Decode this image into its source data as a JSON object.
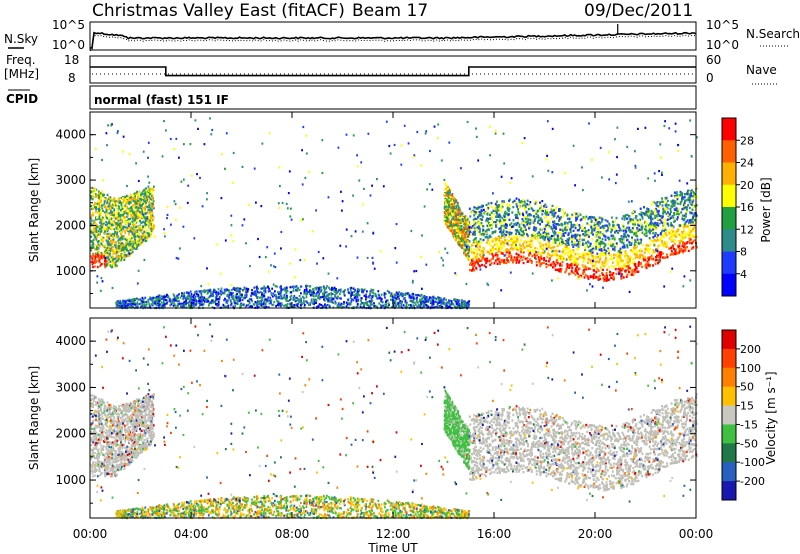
{
  "header": {
    "title": "Christmas Valley East (fitACF)",
    "beam": "Beam 17",
    "date": "09/Dec/2011"
  },
  "ancillary": {
    "nsky_label": "N.Sky",
    "nsearch_label": "N.Search",
    "freq_label": "Freq.",
    "freq_unit": "[MHz]",
    "nave_label": "Nave",
    "cpid_label": "CPID",
    "cpid_text": "normal (fast) 151 IF",
    "noise_ticks": [
      "10^5",
      "10^0"
    ],
    "freq_ticks": [
      "18",
      "8"
    ],
    "nave_ticks": [
      "60",
      "0"
    ]
  },
  "chart_data": [
    {
      "type": "heatmap",
      "name": "power-panel",
      "ylabel": "Slant Range [km]",
      "ylim": [
        180,
        4500
      ],
      "yticks": [
        "1000",
        "2000",
        "3000",
        "4000"
      ],
      "colorbar_label": "Power [dB]",
      "colorbar_ticks": [
        "28",
        "24",
        "20",
        "16",
        "12",
        "8",
        "4"
      ],
      "colorbar_range": [
        0,
        32
      ],
      "colors": [
        "#0000ff",
        "#1e3cff",
        "#2e8b8b",
        "#20a040",
        "#ffff00",
        "#ffb000",
        "#ff6000",
        "#ff0000"
      ]
    },
    {
      "type": "heatmap",
      "name": "velocity-panel",
      "ylabel": "Velocity [m s^-1]",
      "ylabel_axis": "Slant Range [km]",
      "ylim": [
        180,
        4500
      ],
      "yticks": [
        "1000",
        "2000",
        "3000",
        "4000"
      ],
      "colorbar_label": "Velocity [m s⁻¹]",
      "colorbar_ticks": [
        "200",
        "100",
        "50",
        "15",
        "-15",
        "-50",
        "-100",
        "-200"
      ],
      "colors": [
        "#1818b0",
        "#2860c0",
        "#207848",
        "#40c040",
        "#c8c8c0",
        "#ffc000",
        "#ff8000",
        "#ff4000",
        "#e00000"
      ],
      "ground_scatter_color": "#c0c0b8"
    }
  ],
  "time_axis": {
    "label": "Time UT",
    "ticks": [
      "00:00",
      "04:00",
      "08:00",
      "12:00",
      "16:00",
      "20:00",
      "00:00"
    ]
  },
  "frequency": {
    "segments": [
      {
        "from_hour": 0,
        "to_hour": 3.0,
        "mhz": 14.5
      },
      {
        "from_hour": 3.0,
        "to_hour": 15.0,
        "mhz": 10.2
      },
      {
        "from_hour": 15.0,
        "to_hour": 24,
        "mhz": 14.5
      }
    ]
  }
}
